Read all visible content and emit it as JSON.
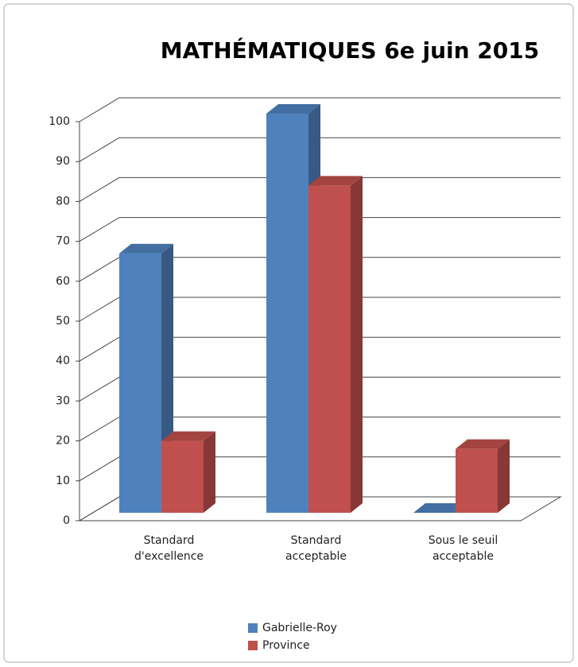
{
  "chart_data": {
    "type": "bar3d",
    "title": "MATHÉMATIQUES 6e juin 2015",
    "categories": [
      "Standard d'excellence",
      "Standard acceptable",
      "Sous le seuil acceptable"
    ],
    "series": [
      {
        "name": "Gabrielle-Roy",
        "color": "#4f81bd",
        "values": [
          65,
          100,
          0
        ]
      },
      {
        "name": "Province",
        "color": "#c0504d",
        "values": [
          18,
          82,
          16
        ]
      }
    ],
    "ylim": [
      0,
      100
    ],
    "yticks": [
      0,
      10,
      20,
      30,
      40,
      50,
      60,
      70,
      80,
      90,
      100
    ],
    "grid": true,
    "legend": "bottom"
  }
}
